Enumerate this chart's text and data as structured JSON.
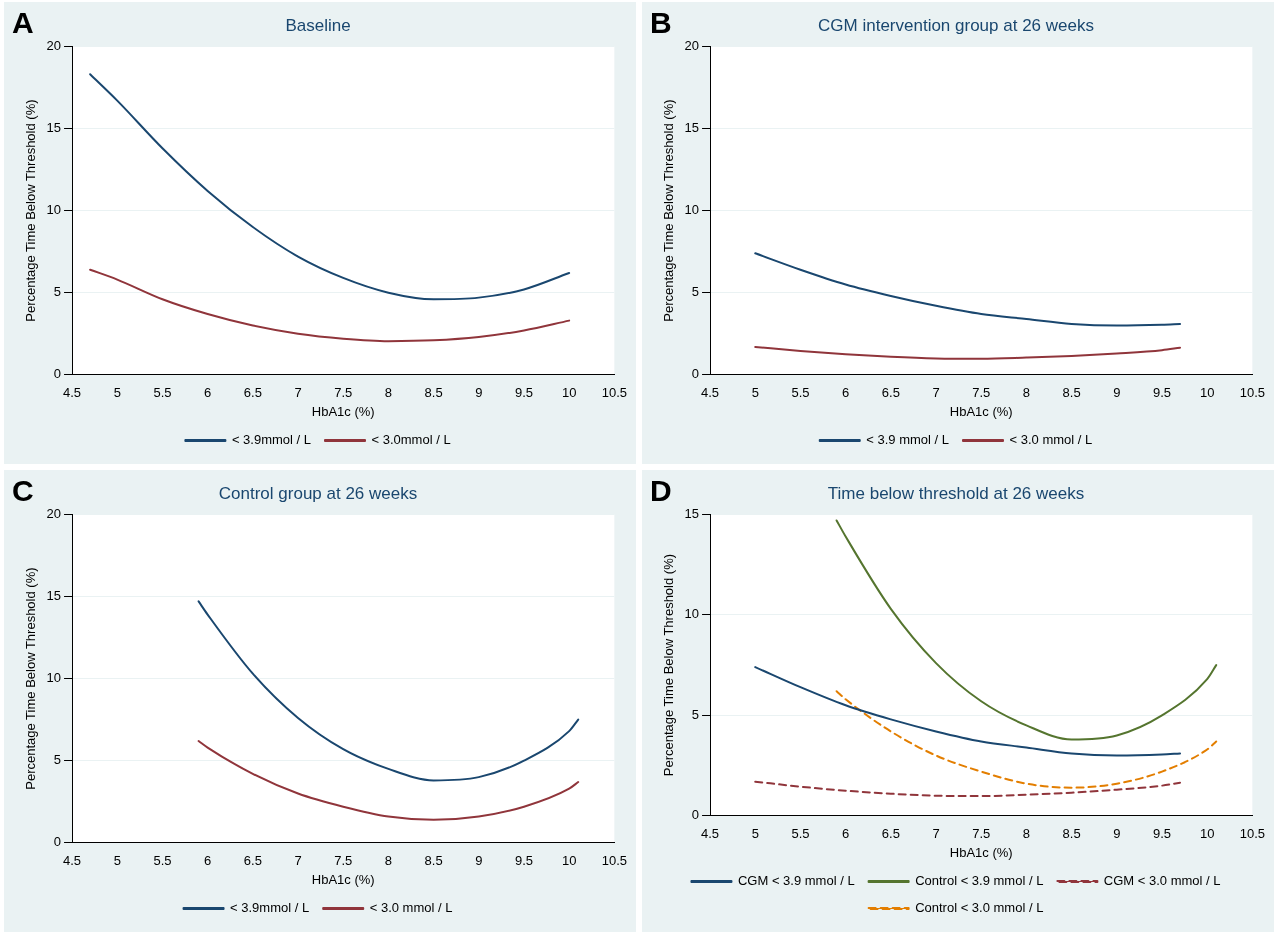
{
  "chart_data": [
    {
      "type": "line",
      "title": "Baseline",
      "annotations": [
        "A"
      ],
      "xlabel": "HbA1c (%)",
      "ylabel": "Percentage Time Below Threshold (%)",
      "xlim": [
        4.5,
        10.5
      ],
      "xticks": [
        4.5,
        5,
        5.5,
        6,
        6.5,
        7,
        7.5,
        8,
        8.5,
        9,
        9.5,
        10,
        10.5
      ],
      "ylim": [
        0,
        20
      ],
      "yticks": [
        0,
        5,
        10,
        15,
        20
      ],
      "grid": "y",
      "legend": "bottom",
      "marker": "none",
      "series": [
        {
          "name": "< 3.9mmol / L",
          "color": "#1a476f",
          "line_style": "solid",
          "x": [
            4.7,
            5,
            5.5,
            6,
            6.5,
            7,
            7.5,
            8,
            8.5,
            9,
            9.5,
            10
          ],
          "values": [
            18.3,
            16.7,
            13.8,
            11.2,
            9.0,
            7.2,
            5.9,
            5.0,
            4.6,
            4.7,
            5.2,
            6.2
          ]
        },
        {
          "name": "< 3.0mmol / L",
          "color": "#90353b",
          "line_style": "solid",
          "x": [
            4.7,
            5,
            5.5,
            6,
            6.5,
            7,
            7.5,
            8,
            8.5,
            9,
            9.5,
            10
          ],
          "values": [
            6.4,
            5.8,
            4.6,
            3.7,
            3.0,
            2.5,
            2.2,
            2.05,
            2.1,
            2.3,
            2.7,
            3.3
          ]
        }
      ]
    },
    {
      "type": "line",
      "title": "CGM intervention group at 26 weeks",
      "annotations": [
        "B"
      ],
      "xlabel": "HbA1c (%)",
      "ylabel": "Percentage Time Below Threshold (%)",
      "xlim": [
        4.5,
        10.5
      ],
      "xticks": [
        4.5,
        5,
        5.5,
        6,
        6.5,
        7,
        7.5,
        8,
        8.5,
        9,
        9.5,
        10,
        10.5
      ],
      "ylim": [
        0,
        20
      ],
      "yticks": [
        0,
        5,
        10,
        15,
        20
      ],
      "grid": "y",
      "legend": "bottom",
      "marker": "none",
      "series": [
        {
          "name": "< 3.9 mmol / L",
          "color": "#1a476f",
          "line_style": "solid",
          "x": [
            5,
            5.5,
            6,
            6.5,
            7,
            7.5,
            8,
            8.5,
            9,
            9.5,
            9.7
          ],
          "values": [
            7.4,
            6.4,
            5.5,
            4.8,
            4.2,
            3.7,
            3.4,
            3.1,
            3.0,
            3.05,
            3.1
          ]
        },
        {
          "name": "< 3.0 mmol / L",
          "color": "#90353b",
          "line_style": "solid",
          "x": [
            5,
            5.5,
            6,
            6.5,
            7,
            7.5,
            8,
            8.5,
            9,
            9.5,
            9.7
          ],
          "values": [
            1.7,
            1.45,
            1.25,
            1.1,
            1.0,
            0.98,
            1.05,
            1.15,
            1.3,
            1.5,
            1.65
          ]
        }
      ]
    },
    {
      "type": "line",
      "title": "Control group at 26 weeks",
      "annotations": [
        "C"
      ],
      "xlabel": "HbA1c (%)",
      "ylabel": "Percentage Time Below Threshold (%)",
      "xlim": [
        4.5,
        10.5
      ],
      "xticks": [
        4.5,
        5,
        5.5,
        6,
        6.5,
        7,
        7.5,
        8,
        8.5,
        9,
        9.5,
        10,
        10.5
      ],
      "ylim": [
        0,
        20
      ],
      "yticks": [
        0,
        5,
        10,
        15,
        20
      ],
      "grid": "y",
      "legend": "bottom",
      "marker": "none",
      "series": [
        {
          "name": "< 3.9mmol / L",
          "color": "#1a476f",
          "line_style": "solid",
          "x": [
            5.9,
            6,
            6.5,
            7,
            7.5,
            8,
            8.5,
            9,
            9.5,
            10,
            10.1
          ],
          "values": [
            14.7,
            13.9,
            10.3,
            7.6,
            5.7,
            4.5,
            3.8,
            4.0,
            5.0,
            6.8,
            7.5
          ]
        },
        {
          "name": "< 3.0 mmol / L",
          "color": "#90353b",
          "line_style": "solid",
          "x": [
            5.9,
            6,
            6.5,
            7,
            7.5,
            8,
            8.5,
            9,
            9.5,
            10,
            10.1
          ],
          "values": [
            6.2,
            5.8,
            4.2,
            3.0,
            2.2,
            1.6,
            1.4,
            1.6,
            2.2,
            3.3,
            3.7
          ]
        }
      ]
    },
    {
      "type": "line",
      "title": "Time below threshold at 26 weeks",
      "annotations": [
        "D"
      ],
      "xlabel": "HbA1c (%)",
      "ylabel": "Percentage Time Below Threshold (%)",
      "xlim": [
        4.5,
        10.5
      ],
      "xticks": [
        4.5,
        5,
        5.5,
        6,
        6.5,
        7,
        7.5,
        8,
        8.5,
        9,
        9.5,
        10,
        10.5
      ],
      "ylim": [
        0,
        15
      ],
      "yticks": [
        0,
        5,
        10,
        15
      ],
      "grid": "y",
      "legend": "bottom",
      "marker": "none",
      "series": [
        {
          "name": "CGM < 3.9 mmol / L",
          "color": "#1a476f",
          "line_style": "solid",
          "x": [
            5,
            5.5,
            6,
            6.5,
            7,
            7.5,
            8,
            8.5,
            9,
            9.5,
            9.7
          ],
          "values": [
            7.4,
            6.4,
            5.5,
            4.8,
            4.2,
            3.7,
            3.4,
            3.1,
            3.0,
            3.05,
            3.1
          ]
        },
        {
          "name": "Control < 3.9 mmol / L",
          "color": "#55752f",
          "line_style": "solid",
          "x": [
            5.9,
            6,
            6.5,
            7,
            7.5,
            8,
            8.5,
            9,
            9.5,
            10,
            10.1
          ],
          "values": [
            14.7,
            13.9,
            10.3,
            7.6,
            5.7,
            4.5,
            3.8,
            4.0,
            5.0,
            6.8,
            7.5
          ]
        },
        {
          "name": "CGM < 3.0 mmol / L",
          "color": "#90353b",
          "line_style": "dashed",
          "x": [
            5,
            5.5,
            6,
            6.5,
            7,
            7.5,
            8,
            8.5,
            9,
            9.5,
            9.7
          ],
          "values": [
            1.7,
            1.45,
            1.25,
            1.1,
            1.0,
            0.98,
            1.05,
            1.15,
            1.3,
            1.5,
            1.65
          ]
        },
        {
          "name": "Control < 3.0 mmol / L",
          "color": "#e37e00",
          "line_style": "dashed",
          "x": [
            5.9,
            6,
            6.5,
            7,
            7.5,
            8,
            8.5,
            9,
            9.5,
            10,
            10.1
          ],
          "values": [
            6.2,
            5.8,
            4.2,
            3.0,
            2.2,
            1.6,
            1.4,
            1.6,
            2.2,
            3.3,
            3.7
          ]
        }
      ]
    }
  ]
}
